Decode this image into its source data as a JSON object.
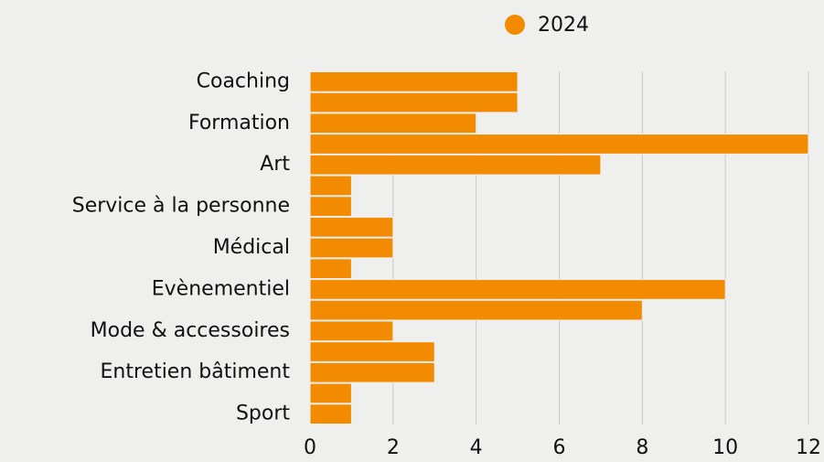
{
  "chart_data": {
    "type": "barh",
    "categories": [
      "Coaching",
      null,
      "Formation",
      null,
      "Art",
      null,
      "Service à la personne",
      null,
      "Médical",
      null,
      "Evènementiel",
      null,
      "Mode & accessoires",
      null,
      "Entretien bâtiment",
      null,
      "Sport"
    ],
    "series": [
      {
        "name": "2024",
        "color": "#f28b00",
        "values": [
          5,
          5,
          4,
          12,
          7,
          1,
          1,
          2,
          2,
          1,
          10,
          8,
          2,
          3,
          3,
          1,
          1
        ]
      }
    ],
    "xlim": [
      0,
      12
    ],
    "xticks": [
      0,
      2,
      4,
      6,
      8,
      10,
      12
    ],
    "grid": true,
    "legend": "top"
  }
}
